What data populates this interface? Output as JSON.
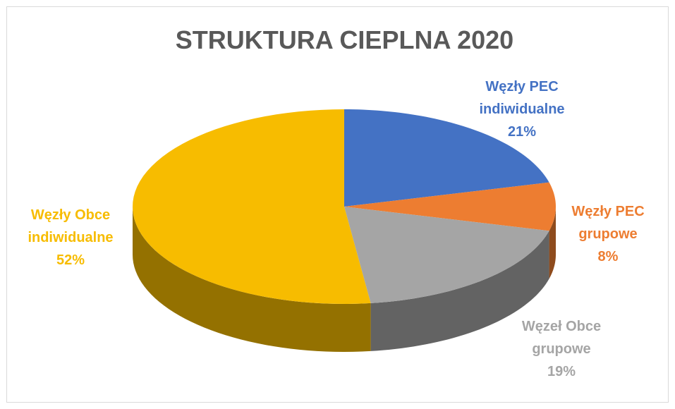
{
  "chart_data": {
    "type": "pie3d",
    "title": "STRUKTURA CIEPLNA 2020",
    "categories": [
      "Węzły PEC indiwidualne",
      "Węzły PEC grupowe",
      "Węzeł Obce grupowe",
      "Węzły Obce indiwidualne"
    ],
    "values": [
      21,
      8,
      19,
      52
    ],
    "value_labels": [
      "21%",
      "8%",
      "19%",
      "52%"
    ],
    "colors": [
      "#4472c4",
      "#ed7d31",
      "#a5a5a5",
      "#f7bc00"
    ]
  }
}
